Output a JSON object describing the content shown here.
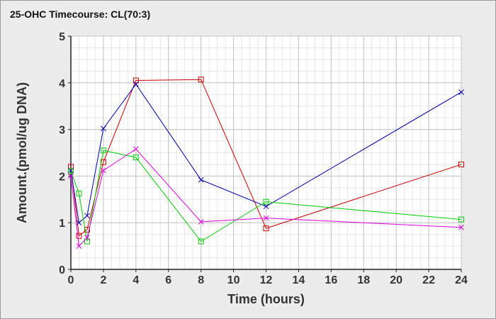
{
  "chart_data": {
    "type": "line",
    "title": "25-OHC Timecourse: CL(70:3)",
    "xlabel": "Time (hours)",
    "ylabel": "Amount.(pmol/ug DNA)",
    "xlim": [
      0,
      24
    ],
    "ylim": [
      0,
      5
    ],
    "xticks": [
      0,
      2,
      4,
      6,
      8,
      10,
      12,
      14,
      16,
      18,
      20,
      22,
      24
    ],
    "yticks": [
      0,
      1,
      2,
      3,
      4,
      5
    ],
    "grid": true,
    "series": [
      {
        "color": "#cc0000",
        "marker": "square",
        "x": [
          0,
          0.5,
          1,
          2,
          4,
          8,
          12,
          24
        ],
        "y": [
          2.2,
          0.72,
          0.85,
          2.3,
          4.05,
          4.07,
          0.88,
          2.25
        ]
      },
      {
        "color": "#0000aa",
        "marker": "x",
        "x": [
          0,
          0.5,
          1,
          2,
          4,
          8,
          12,
          24
        ],
        "y": [
          2.12,
          1.0,
          1.15,
          3.02,
          3.97,
          1.92,
          1.35,
          3.8
        ]
      },
      {
        "color": "#00cc00",
        "marker": "square",
        "x": [
          0,
          0.5,
          1,
          2,
          4,
          8,
          12,
          24
        ],
        "y": [
          2.1,
          1.63,
          0.6,
          2.55,
          2.4,
          0.6,
          1.45,
          1.07
        ]
      },
      {
        "color": "#dd00dd",
        "marker": "x",
        "x": [
          0,
          0.5,
          1,
          2,
          4,
          8,
          12,
          24
        ],
        "y": [
          2.0,
          0.5,
          0.68,
          2.12,
          2.58,
          1.02,
          1.1,
          0.9
        ]
      }
    ]
  }
}
